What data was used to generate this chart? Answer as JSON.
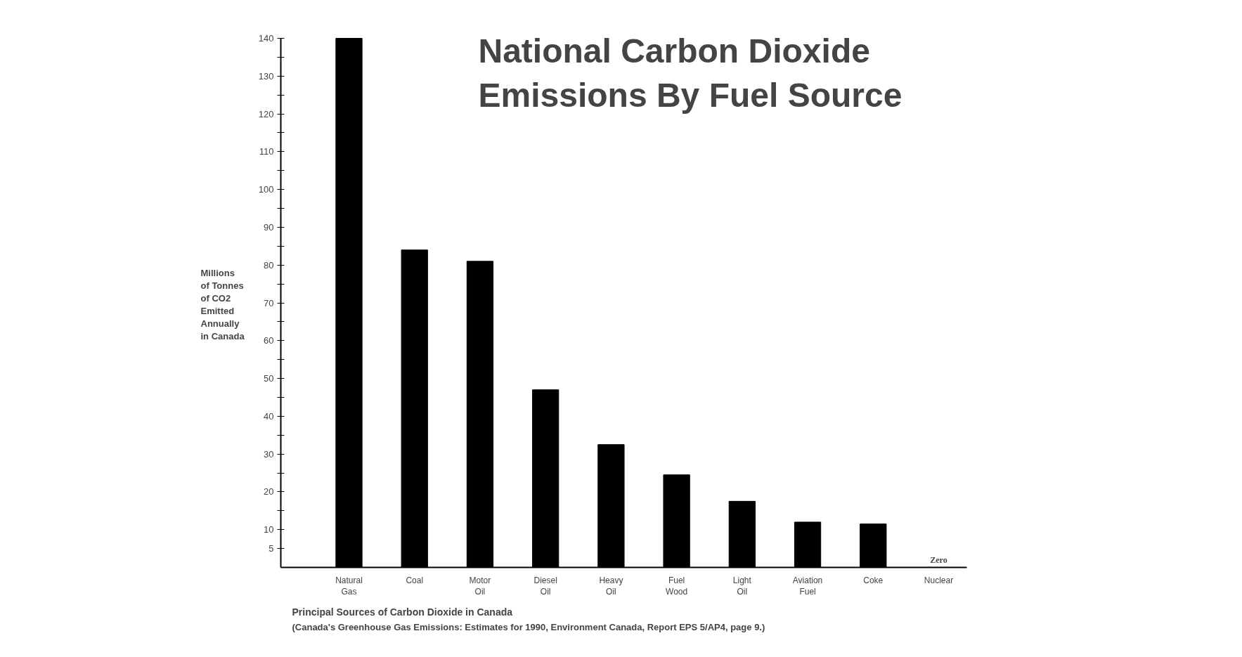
{
  "chart_data": {
    "type": "bar",
    "title": "National Carbon Dioxide\nEmissions By Fuel Source",
    "xlabel": "Principal Sources of Carbon Dioxide in Canada",
    "ylabel": "Millions\nof Tonnes\nof CO2\nEmitted\nAnnually\nin Canada",
    "annotations": [
      "(Canada's Greenhouse Gas Emissions: Estimates for 1990, Environment Canada, Report EPS 5/AP4, page 9.)"
    ],
    "categories": [
      "Natural\nGas",
      "Coal",
      "Motor\nOil",
      "Diesel\nOil",
      "Heavy\nOil",
      "Fuel\nWood",
      "Light\nOil",
      "Aviation\nFuel",
      "Coke",
      "Nuclear"
    ],
    "values": [
      140,
      84,
      81,
      47,
      32.5,
      24.5,
      17.5,
      12,
      11.5,
      0
    ],
    "value_labels": [
      null,
      null,
      null,
      null,
      null,
      null,
      null,
      null,
      null,
      "Zero"
    ],
    "color": "#000000",
    "ylim": [
      0,
      140
    ],
    "yticks": [
      5,
      10,
      {
        "value": 15,
        "label": null
      },
      20,
      {
        "value": 25,
        "label": null
      },
      30,
      {
        "value": 35,
        "label": null
      },
      40,
      {
        "value": 45,
        "label": null
      },
      50,
      {
        "value": 55,
        "label": null
      },
      60,
      {
        "value": 65,
        "label": null
      },
      70,
      {
        "value": 75,
        "label": null
      },
      80,
      {
        "value": 85,
        "label": null
      },
      90,
      {
        "value": 95,
        "label": null
      },
      100,
      {
        "value": 105,
        "label": null
      },
      110,
      {
        "value": 115,
        "label": null
      },
      120,
      {
        "value": 125,
        "label": null
      },
      130,
      {
        "value": 135,
        "label": null
      },
      140
    ],
    "grid": false
  }
}
